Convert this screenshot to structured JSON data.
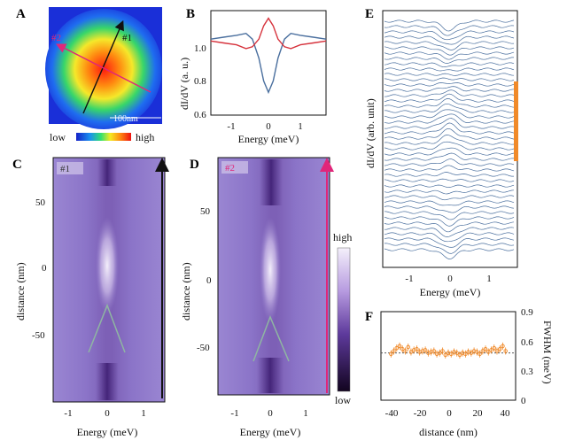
{
  "panels": {
    "A": {
      "label": "A",
      "line1_tag": "#1",
      "line2_tag": "#2",
      "scalebar": "100nm",
      "colorbar_low": "low",
      "colorbar_high": "high"
    },
    "B": {
      "label": "B",
      "ylabel": "dI/dV (a. u.)",
      "xlabel": "Energy (meV)",
      "yticks": [
        "1.0",
        "0.8",
        "0.6"
      ],
      "xticks": [
        "-1",
        "0",
        "1"
      ]
    },
    "C": {
      "label": "C",
      "tag": "#1",
      "ylabel": "distance (nm)",
      "xlabel": "Energy (meV)",
      "yticks": [
        "50",
        "0",
        "-50"
      ],
      "xticks": [
        "-1",
        "0",
        "1"
      ]
    },
    "D": {
      "label": "D",
      "tag": "#2",
      "ylabel": "distance (nm)",
      "xlabel": "Energy (meV)",
      "yticks": [
        "50",
        "0",
        "-50"
      ],
      "xticks": [
        "-1",
        "0",
        "1"
      ],
      "colorbar_high": "high",
      "colorbar_low": "low"
    },
    "E": {
      "label": "E",
      "ylabel": "dI/dV (arb. unit)",
      "xlabel": "Energy (meV)",
      "xticks": [
        "-1",
        "0",
        "1"
      ]
    },
    "F": {
      "label": "F",
      "ylabel": "FWHM (meV)",
      "xlabel": "distance (nm)",
      "xticks": [
        "-40",
        "-20",
        "0",
        "20",
        "40"
      ],
      "yticks": [
        "0.9",
        "0.6",
        "0.3",
        "0"
      ]
    }
  },
  "colors": {
    "blue_trace": "#4a6f9e",
    "red_trace": "#d6323c",
    "magenta": "#e0267a",
    "orange": "#f08a2a",
    "green_guide": "#8fb6a2"
  },
  "chart_data": [
    {
      "panel": "B",
      "type": "line",
      "xlabel": "Energy (meV)",
      "ylabel": "dI/dV (a. u.)",
      "xlim": [
        -1.8,
        1.8
      ],
      "ylim": [
        0.6,
        1.15
      ],
      "series": [
        {
          "name": "#1",
          "color": "#4a6f9e",
          "x": [
            -1.8,
            -1.4,
            -1.0,
            -0.7,
            -0.5,
            -0.3,
            -0.15,
            0,
            0.15,
            0.3,
            0.5,
            0.7,
            1.0,
            1.4,
            1.8
          ],
          "values": [
            1.0,
            1.01,
            1.02,
            1.03,
            1.0,
            0.9,
            0.78,
            0.72,
            0.78,
            0.9,
            1.0,
            1.03,
            1.02,
            1.01,
            1.0
          ]
        },
        {
          "name": "#2",
          "color": "#d6323c",
          "x": [
            -1.8,
            -1.4,
            -1.0,
            -0.7,
            -0.5,
            -0.3,
            -0.15,
            0,
            0.15,
            0.3,
            0.5,
            0.7,
            1.0,
            1.4,
            1.8
          ],
          "values": [
            0.99,
            0.98,
            0.97,
            0.95,
            0.96,
            1.0,
            1.07,
            1.11,
            1.07,
            1.0,
            0.96,
            0.95,
            0.97,
            0.98,
            0.99
          ]
        }
      ]
    },
    {
      "panel": "F",
      "type": "scatter",
      "xlabel": "distance (nm)",
      "ylabel": "FWHM (meV)",
      "xlim": [
        -47,
        47
      ],
      "ylim": [
        0,
        0.9
      ],
      "reference_line": 0.48,
      "x": [
        -40,
        -38,
        -36,
        -34,
        -32,
        -30,
        -28,
        -26,
        -24,
        -22,
        -20,
        -18,
        -16,
        -14,
        -12,
        -10,
        -8,
        -6,
        -4,
        -2,
        0,
        2,
        4,
        6,
        8,
        10,
        12,
        14,
        16,
        18,
        20,
        22,
        24,
        26,
        28,
        30,
        32,
        34,
        36,
        38,
        40
      ],
      "values": [
        0.47,
        0.5,
        0.53,
        0.55,
        0.52,
        0.5,
        0.54,
        0.49,
        0.51,
        0.52,
        0.49,
        0.5,
        0.51,
        0.48,
        0.49,
        0.5,
        0.47,
        0.48,
        0.5,
        0.46,
        0.48,
        0.47,
        0.49,
        0.48,
        0.46,
        0.48,
        0.47,
        0.49,
        0.48,
        0.5,
        0.49,
        0.47,
        0.5,
        0.52,
        0.49,
        0.51,
        0.53,
        0.5,
        0.52,
        0.55,
        0.5
      ]
    }
  ]
}
